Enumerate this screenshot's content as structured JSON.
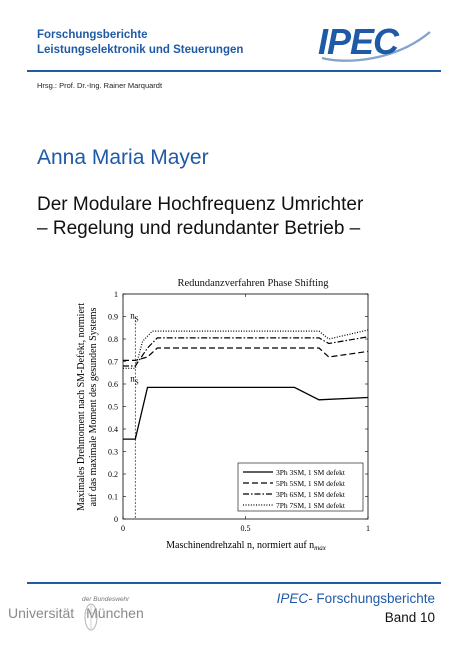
{
  "header": {
    "series_line1": "Forschungsberichte",
    "series_line2": "Leistungselektronik und Steuerungen",
    "logo_text": "IPEC",
    "editor": "Hrsg.: Prof. Dr.-Ing. Rainer Marquardt"
  },
  "book": {
    "author": "Anna Maria Mayer",
    "title_line1": "Der Modulare Hochfrequenz Umrichter",
    "title_line2": "– Regelung und redundanter Betrieb –"
  },
  "chart_data": {
    "type": "line",
    "title": "Redundanzverfahren Phase Shifting",
    "xlabel": "Maschinendrehzahl n, normiert auf n",
    "xlabel_sub": "max",
    "ylabel_line1": "Maximales Drehmoment nach SM-Defekt, normiert",
    "ylabel_line2": "auf das maximale Moment des gesunden Systems",
    "xlim": [
      0,
      1
    ],
    "ylim": [
      0,
      1
    ],
    "xticks": [
      "0",
      "0.5",
      "1"
    ],
    "yticks": [
      "0",
      "0.1",
      "0.2",
      "0.3",
      "0.4",
      "0.5",
      "0.6",
      "0.7",
      "0.8",
      "0.9",
      "1"
    ],
    "grid": false,
    "legend_position": "bottom-right",
    "annotations": [
      {
        "text": "n",
        "sub": "S",
        "x": 0.05,
        "y": 0.9
      },
      {
        "text": "n",
        "sub": "S",
        "x": 0.05,
        "y": 0.62
      }
    ],
    "series": [
      {
        "name": "3Ph 3SM, 1 SM defekt",
        "style": "solid",
        "x": [
          0,
          0.05,
          0.1,
          0.7,
          0.8,
          1.0
        ],
        "y": [
          0.355,
          0.355,
          0.585,
          0.585,
          0.53,
          0.54
        ]
      },
      {
        "name": "5Ph 5SM, 1 SM defekt",
        "style": "dashed",
        "x": [
          0,
          0.05,
          0.1,
          0.14,
          0.8,
          0.84,
          1.0
        ],
        "y": [
          0.705,
          0.705,
          0.72,
          0.76,
          0.76,
          0.72,
          0.745
        ]
      },
      {
        "name": "3Ph 6SM, 1 SM defekt",
        "style": "dashdot",
        "x": [
          0,
          0.05,
          0.1,
          0.14,
          0.8,
          0.84,
          1.0
        ],
        "y": [
          0.68,
          0.68,
          0.76,
          0.805,
          0.805,
          0.78,
          0.81
        ]
      },
      {
        "name": "7Ph 7SM, 1 SM defekt",
        "style": "dotted",
        "x": [
          0,
          0.05,
          0.08,
          0.12,
          0.8,
          0.84,
          1.0
        ],
        "y": [
          0.67,
          0.67,
          0.79,
          0.835,
          0.835,
          0.8,
          0.84
        ]
      }
    ]
  },
  "footer": {
    "uni_top": "der Bundeswehr",
    "uni_name": "Universität",
    "uni_city": "München",
    "series_prefix": "IPEC",
    "series_suffix": "- Forschungsberichte",
    "volume": "Band 10"
  }
}
